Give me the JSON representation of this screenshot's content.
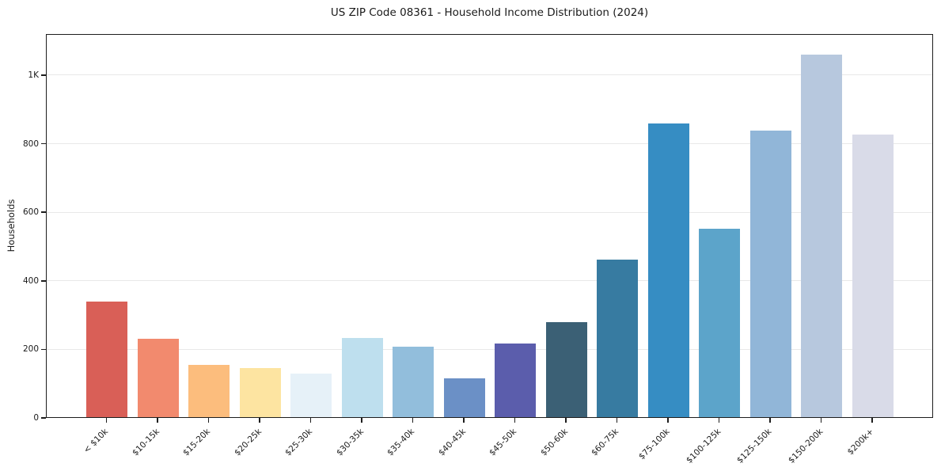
{
  "page": {
    "title": "US ZIP Code 08361 - Household Income Distribution (2024)"
  },
  "chart_data": {
    "type": "bar",
    "title": "US ZIP Code 08361 - Household Income Distribution (2024)",
    "xlabel": "",
    "ylabel": "Households",
    "categories": [
      "< $10k",
      "$10-15k",
      "$15-20k",
      "$20-25k",
      "$25-30k",
      "$30-35k",
      "$35-40k",
      "$40-45k",
      "$45-50k",
      "$50-60k",
      "$60-75k",
      "$75-100k",
      "$100-125k",
      "$125-150k",
      "$150-200k",
      "$200k+"
    ],
    "values": [
      340,
      232,
      156,
      148,
      130,
      234,
      209,
      118,
      219,
      281,
      464,
      860,
      554,
      839,
      1062,
      829
    ],
    "bar_colors": [
      "#d95f57",
      "#f28a6e",
      "#fcbd7d",
      "#fde4a1",
      "#e6f1f8",
      "#bedfee",
      "#92bedc",
      "#6b90c6",
      "#5b5dac",
      "#3b6075",
      "#377ba1",
      "#368dc3",
      "#5ca4ca",
      "#91b6d8",
      "#b7c8de",
      "#d9dbe8"
    ],
    "yticks": [
      {
        "value": 0,
        "label": "0"
      },
      {
        "value": 200,
        "label": "200"
      },
      {
        "value": 400,
        "label": "400"
      },
      {
        "value": 600,
        "label": "600"
      },
      {
        "value": 800,
        "label": "800"
      },
      {
        "value": 1000,
        "label": "1K"
      }
    ],
    "ylim": [
      0,
      1120
    ],
    "grid": "horizontal",
    "grid_color": "#e8e8e8",
    "axis_color": "#1d1d1d",
    "text_color": "#1a1a1a",
    "background": "#ffffff",
    "legend": "none",
    "xticklabel_rotation": 45
  }
}
